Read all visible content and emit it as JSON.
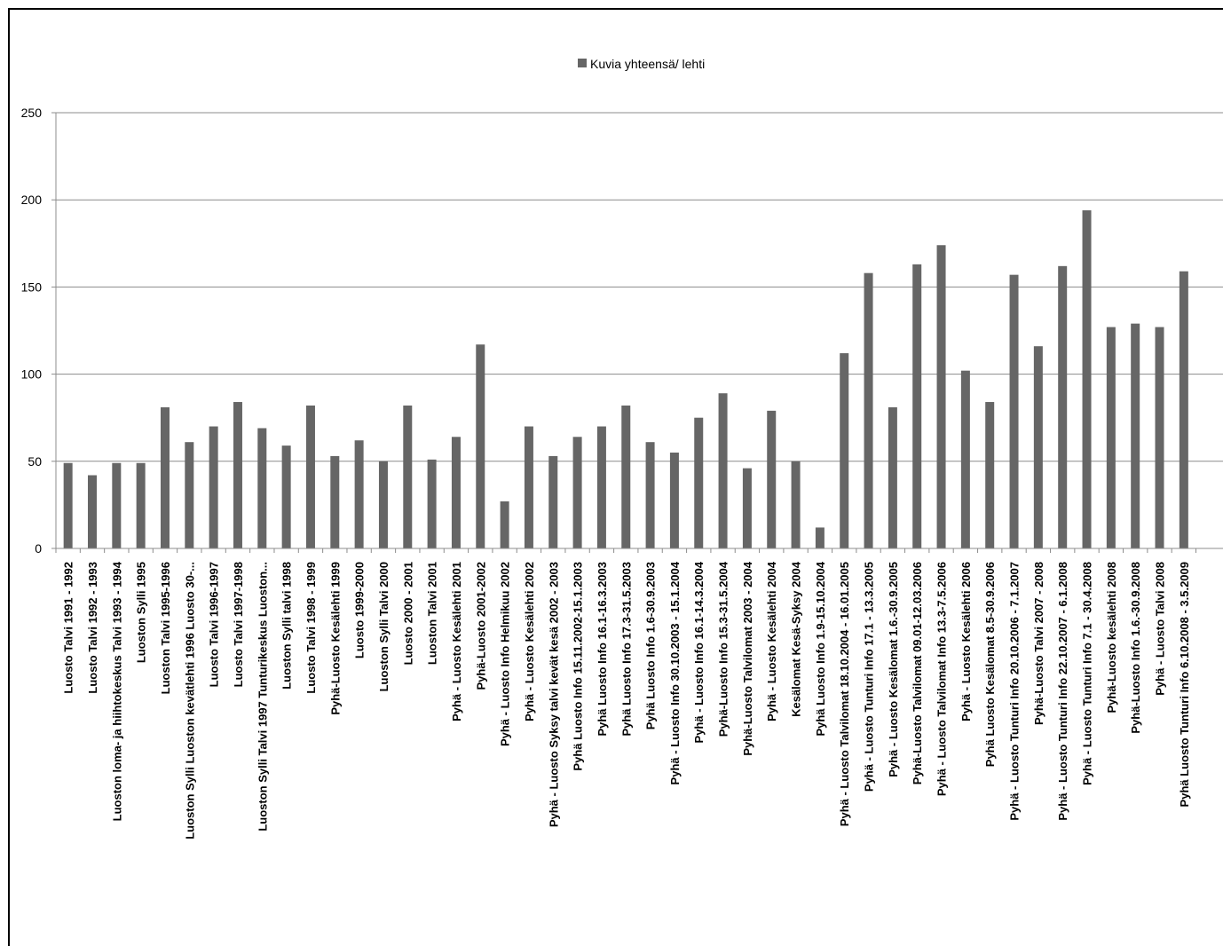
{
  "chart_data": {
    "type": "bar",
    "legend_position": "top",
    "grid": true,
    "ylim": [
      0,
      250
    ],
    "yticks": [
      0,
      50,
      100,
      150,
      200,
      250
    ],
    "colors": {
      "bar": "#666666",
      "grid": "#8c8c8c",
      "axis": "#8c8c8c"
    },
    "series": [
      {
        "name": "Kuvia yhteensä/ lehti",
        "values": [
          49,
          42,
          49,
          49,
          81,
          61,
          70,
          84,
          69,
          59,
          82,
          53,
          62,
          50,
          82,
          51,
          64,
          117,
          27,
          70,
          53,
          64,
          70,
          82,
          61,
          55,
          75,
          89,
          46,
          79,
          50,
          12,
          112,
          158,
          81,
          163,
          174,
          102,
          84,
          157,
          116,
          162,
          194,
          127,
          129,
          127,
          159
        ]
      }
    ],
    "categories": [
      "Luosto Talvi 1991 - 1992",
      "Luosto Talvi 1992 - 1993",
      "Luoston loma- ja hiihtokeskus Talvi 1993 - 1994",
      "Luoston Sylli 1995",
      "Luoston Talvi 1995-1996",
      "Luoston Sylli Luoston kevätlehti 1996 Luosto 30-...",
      "Luosto Talvi 1996-1997",
      "Luosto Talvi 1997-1998",
      "Luoston Sylli Talvi 1997 Tunturikeskus Luoston...",
      "Luoston Sylli talvi 1998",
      "Luosto Talvi 1998 - 1999",
      "Pyhä-Luosto Kesälehti 1999",
      "Luosto 1999-2000",
      "Luoston Sylli Talvi 2000",
      "Luosto 2000 - 2001",
      "Luoston Talvi 2001",
      "Pyhä - Luosto Kesälehti 2001",
      "Pyhä-Luosto 2001-2002",
      "Pyhä - Luosto Info Helmikuu 2002",
      "Pyhä - Luosto Kesälehti 2002",
      "Pyhä - Luosto Syksy talvi kevät kesä 2002 - 2003",
      "Pyhä Luosto Info 15.11.2002-15.1.2003",
      "Pyhä Luosto Info 16.1-16.3.2003",
      "Pyhä Luosto Info 17.3-31.5.2003",
      "Pyhä Luosto Info 1.6-30.9.2003",
      "Pyhä - Luosto Info 30.10.2003 - 15.1.2004",
      "Pyhä - Luosto Info 16.1-14.3.2004",
      "Pyhä-Luosto Info 15.3-31.5.2004",
      "Pyhä-Luosto Talvilomat 2003 - 2004",
      "Pyhä - Luosto Kesälehti 2004",
      "Kesälomat Kesä-Syksy 2004",
      "Pyhä Luosto Info 1.9-15.10.2004",
      "Pyhä - Luosto Talvilomat 18.10.2004 - 16.01.2005",
      "Pyhä - Luosto Tunturi Info 17.1 - 13.3.2005",
      "Pyhä - Luosto Kesälomat 1.6.-30.9.2005",
      "Pyhä-Luosto Talvilomat 09.01-12.03.2006",
      "Pyhä - Luosto Talvilomat Info 13.3-7.5.2006",
      "Pyhä - Luosto Kesälehti 2006",
      "Pyhä Luosto Kesälomat 8.5-30.9.2006",
      "Pyhä - Luosto Tunturi Info 20.10.2006 - 7.1.2007",
      "Pyhä-Luosto Talvi 2007 - 2008",
      "Pyhä - Luosto Tunturi Info 22.10.2007 - 6.1.2008",
      "Pyhä - Luosto Tunturi Info 7.1 - 30.4.2008",
      "Pyhä-Luosto kesälehti 2008",
      "Pyhä-Luosto Info 1.6.-30.9.2008",
      "Pyhä - Luosto Talvi 2008",
      "Pyhä Luosto Tunturi Info 6.10.2008 - 3.5.2009"
    ]
  }
}
